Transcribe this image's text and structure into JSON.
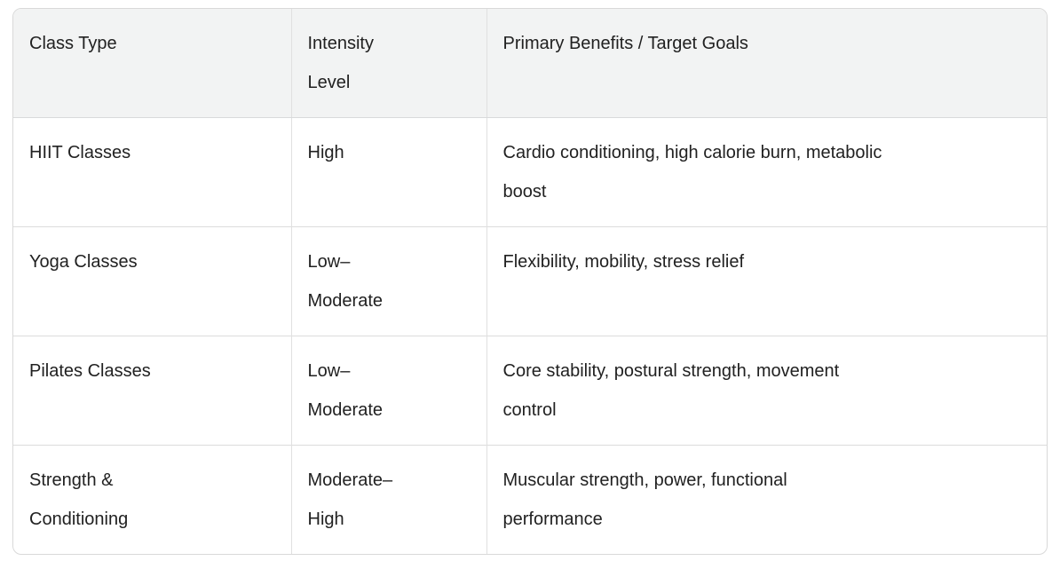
{
  "table": {
    "columns": [
      {
        "key": "class_type",
        "label": "Class Type"
      },
      {
        "key": "intensity",
        "label": "Intensity\nLevel"
      },
      {
        "key": "benefits",
        "label": "Primary Benefits / Target Goals"
      }
    ],
    "rows": [
      {
        "class_type": "HIIT Classes",
        "intensity": "High",
        "benefits": "Cardio conditioning, high calorie burn, metabolic\nboost"
      },
      {
        "class_type": "Yoga Classes",
        "intensity": "Low–\nModerate",
        "benefits": "Flexibility, mobility, stress relief"
      },
      {
        "class_type": "Pilates Classes",
        "intensity": "Low–\nModerate",
        "benefits": "Core stability, postural strength, movement\ncontrol"
      },
      {
        "class_type": "Strength &\nConditioning",
        "intensity": "Moderate–\nHigh",
        "benefits": "Muscular strength, power, functional\nperformance"
      }
    ]
  },
  "colors": {
    "header_background": "#f2f3f3",
    "outer_border": "#d9d9d9",
    "inner_border": "#e0e0e0",
    "text": "#212121",
    "page_background": "#ffffff"
  }
}
